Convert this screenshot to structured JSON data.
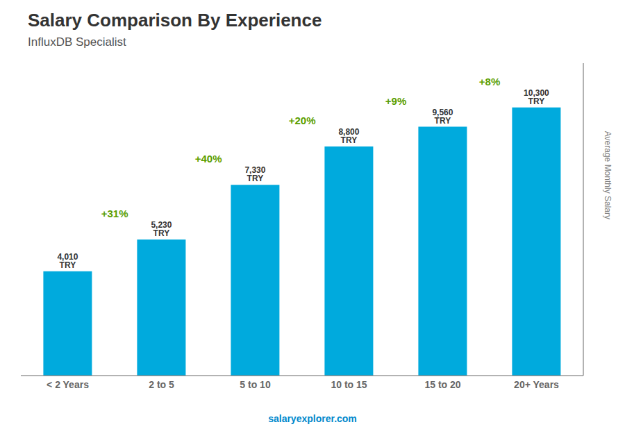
{
  "chart_data": {
    "type": "bar",
    "title": "Salary Comparison By Experience",
    "subtitle": "InfluxDB Specialist",
    "categories": [
      "< 2 Years",
      "2 to 5",
      "5 to 10",
      "10 to 15",
      "15 to 20",
      "20+ Years"
    ],
    "values": [
      4010,
      5230,
      7330,
      8800,
      9560,
      10300
    ],
    "value_labels": [
      "4,010 TRY",
      "5,230 TRY",
      "7,330 TRY",
      "8,800 TRY",
      "9,560 TRY",
      "10,300 TRY"
    ],
    "data_labels": true,
    "color": "#00aadd",
    "ylabel": "Average Monthly Salary",
    "ylim": [
      0,
      12000
    ],
    "tick_labels": "x",
    "grid": false,
    "annotations": [
      "+31%",
      "+40%",
      "+20%",
      "+9%",
      "+8%",
      "salaryexplorer.com"
    ]
  }
}
